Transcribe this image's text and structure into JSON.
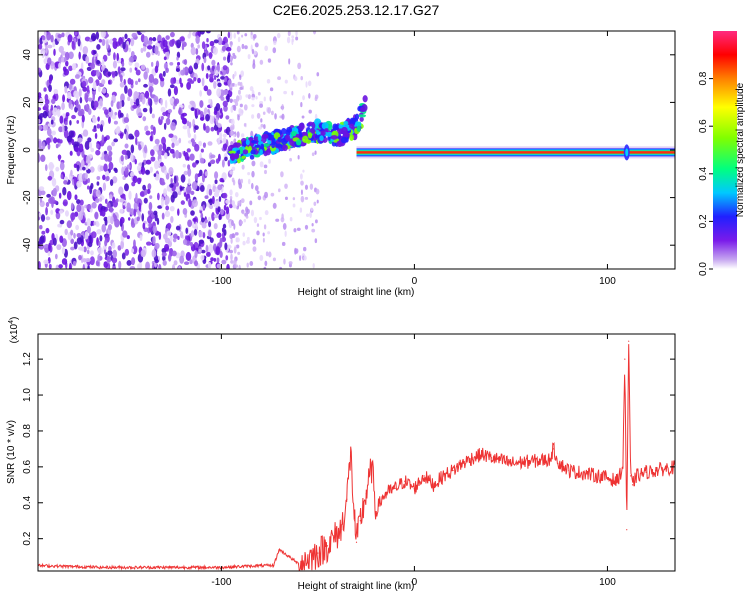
{
  "title": "C2E6.2025.253.12.17.G27",
  "chart_data": [
    {
      "type": "heatmap",
      "title": "C2E6.2025.253.12.17.G27",
      "xlabel": "Height of straight line (km)",
      "ylabel": "Frequency (Hz)",
      "xlim": [
        -195,
        135
      ],
      "ylim": [
        -50,
        50
      ],
      "x_ticks": [
        -100,
        0,
        100
      ],
      "x_tick_labels": [
        "-100",
        "0",
        "100"
      ],
      "y_ticks": [
        -40,
        -20,
        0,
        20,
        40
      ],
      "y_tick_labels": [
        "-40",
        "-20",
        "0",
        "20",
        "40"
      ],
      "colorbar": {
        "label": "Normalized spectral amplitude",
        "range": [
          0,
          1
        ],
        "ticks": [
          0.0,
          0.2,
          0.4,
          0.6,
          0.8
        ],
        "tick_labels": [
          "0.0",
          "0.2",
          "0.4",
          "0.6",
          "0.8"
        ]
      },
      "features": {
        "noise_region_x": [
          -195,
          -95
        ],
        "drift_track": [
          {
            "x": -95,
            "y": -2
          },
          {
            "x": -80,
            "y": 2
          },
          {
            "x": -65,
            "y": 5
          },
          {
            "x": -50,
            "y": 8
          },
          {
            "x": -40,
            "y": 6
          },
          {
            "x": -30,
            "y": 10
          },
          {
            "x": -25,
            "y": 20
          }
        ],
        "carrier_line": {
          "x_start": -30,
          "x_end": 135,
          "freq": -1,
          "amplitude": 0.95
        }
      }
    },
    {
      "type": "line",
      "xlabel": "Height of straight line (km)",
      "ylabel": "SNR (10 * v/v)",
      "y_multiplier_label": "(x10",
      "y_multiplier_exp": "4",
      "xlim": [
        -195,
        135
      ],
      "ylim": [
        0.02,
        1.34
      ],
      "x_ticks": [
        -100,
        0,
        100
      ],
      "x_tick_labels": [
        "-100",
        "0",
        "100"
      ],
      "y_ticks": [
        0.2,
        0.4,
        0.6,
        0.8,
        1.0,
        1.2
      ],
      "y_tick_labels": [
        "0.2",
        "0.4",
        "0.6",
        "0.8",
        "1.0",
        "1.2"
      ],
      "series": [
        {
          "name": "SNR",
          "color": "#ee3333",
          "x": [
            -195,
            -160,
            -120,
            -100,
            -80,
            -73,
            -70,
            -60,
            -50,
            -45,
            -38,
            -35,
            -33,
            -31,
            -30,
            -28,
            -25,
            -22,
            -20,
            -18,
            -15,
            -10,
            -5,
            0,
            5,
            10,
            15,
            20,
            25,
            30,
            35,
            40,
            50,
            60,
            70,
            72,
            75,
            80,
            90,
            100,
            105,
            108,
            109,
            110,
            111,
            112,
            113,
            115,
            120,
            125,
            130,
            135
          ],
          "values": [
            0.05,
            0.04,
            0.04,
            0.04,
            0.05,
            0.05,
            0.14,
            0.06,
            0.12,
            0.16,
            0.25,
            0.42,
            0.68,
            0.3,
            0.18,
            0.3,
            0.45,
            0.6,
            0.35,
            0.4,
            0.45,
            0.48,
            0.52,
            0.48,
            0.55,
            0.5,
            0.55,
            0.58,
            0.62,
            0.65,
            0.67,
            0.65,
            0.62,
            0.63,
            0.64,
            0.7,
            0.62,
            0.58,
            0.56,
            0.54,
            0.52,
            0.6,
            1.2,
            0.25,
            1.3,
            0.55,
            0.5,
            0.55,
            0.57,
            0.58,
            0.59,
            0.6
          ]
        }
      ]
    }
  ]
}
